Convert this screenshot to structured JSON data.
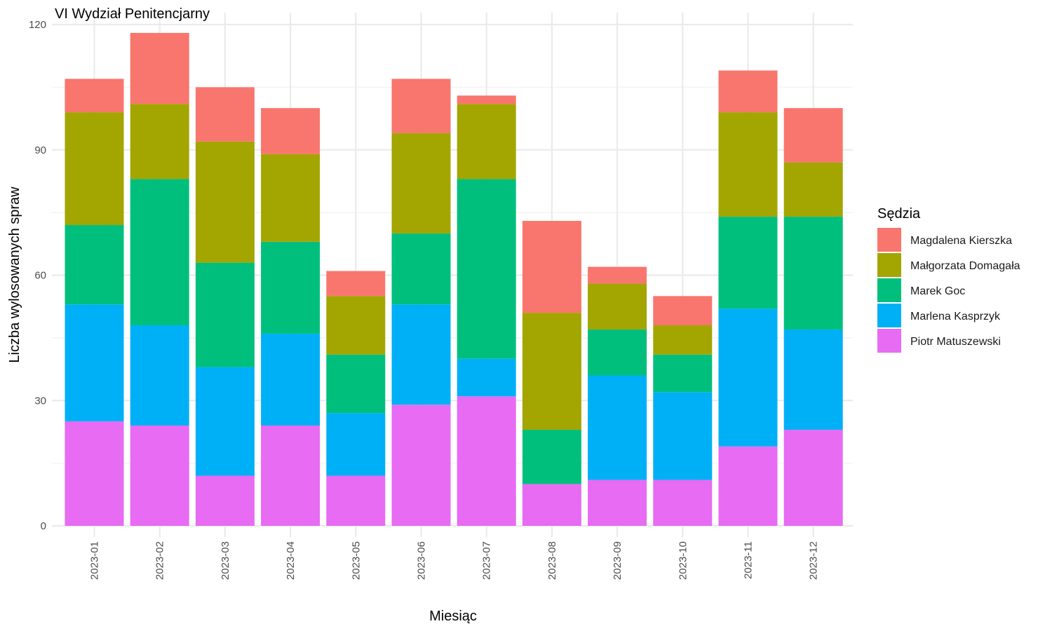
{
  "chart_data": {
    "type": "bar",
    "stacked": true,
    "title": "VI Wydział Penitencjarny",
    "xlabel": "Miesiąc",
    "ylabel": "Liczba wylosowanych spraw",
    "ylim": [
      0,
      120
    ],
    "yticks": [
      "0",
      "30",
      "60",
      "90",
      "120"
    ],
    "grid": true,
    "legend_position": "right",
    "legend_title": "Sędzia",
    "categories": [
      "2023-01",
      "2023-02",
      "2023-03",
      "2023-04",
      "2023-05",
      "2023-06",
      "2023-07",
      "2023-08",
      "2023-09",
      "2023-10",
      "2023-11",
      "2023-12"
    ],
    "series": [
      {
        "name": "Magdalena Kierszka",
        "color": "#F8766D",
        "values": [
          8,
          17,
          13,
          11,
          6,
          13,
          2,
          22,
          4,
          7,
          10,
          13
        ]
      },
      {
        "name": "Małgorzata Domagała",
        "color": "#A3A500",
        "values": [
          27,
          18,
          29,
          21,
          14,
          24,
          18,
          28,
          11,
          7,
          25,
          13
        ]
      },
      {
        "name": "Marek Goc",
        "color": "#00BF7D",
        "values": [
          19,
          35,
          25,
          22,
          14,
          17,
          43,
          13,
          11,
          9,
          22,
          27
        ]
      },
      {
        "name": "Marlena Kasprzyk",
        "color": "#00B0F6",
        "values": [
          28,
          24,
          26,
          22,
          15,
          24,
          9,
          0,
          25,
          21,
          33,
          24
        ]
      },
      {
        "name": "Piotr Matuszewski",
        "color": "#E76BF3",
        "values": [
          25,
          24,
          12,
          24,
          12,
          29,
          31,
          10,
          11,
          11,
          19,
          23
        ]
      }
    ]
  }
}
